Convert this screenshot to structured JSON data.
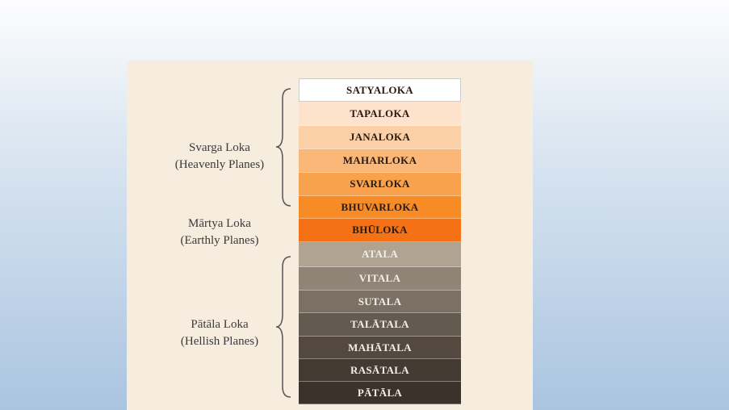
{
  "layers": [
    {
      "label": "SATYALOKA"
    },
    {
      "label": "TAPALOKA"
    },
    {
      "label": "JANALOKA"
    },
    {
      "label": "MAHARLOKA"
    },
    {
      "label": "SVARLOKA"
    },
    {
      "label": "BHUVARLOKA"
    },
    {
      "label": "BHŪLOKA"
    },
    {
      "label": "ATALA"
    },
    {
      "label": "VITALA"
    },
    {
      "label": "SUTALA"
    },
    {
      "label": "TALĀTALA"
    },
    {
      "label": "MAHĀTALA"
    },
    {
      "label": "RASĀTALA"
    },
    {
      "label": "PĀTĀLA"
    }
  ],
  "groups": [
    {
      "name": "Svarga Loka",
      "description": "(Heavenly Planes)"
    },
    {
      "name": "Mārtya Loka",
      "description": "(Earthly Planes)"
    },
    {
      "name": "Pātāla Loka",
      "description": "(Hellish Planes)"
    }
  ]
}
